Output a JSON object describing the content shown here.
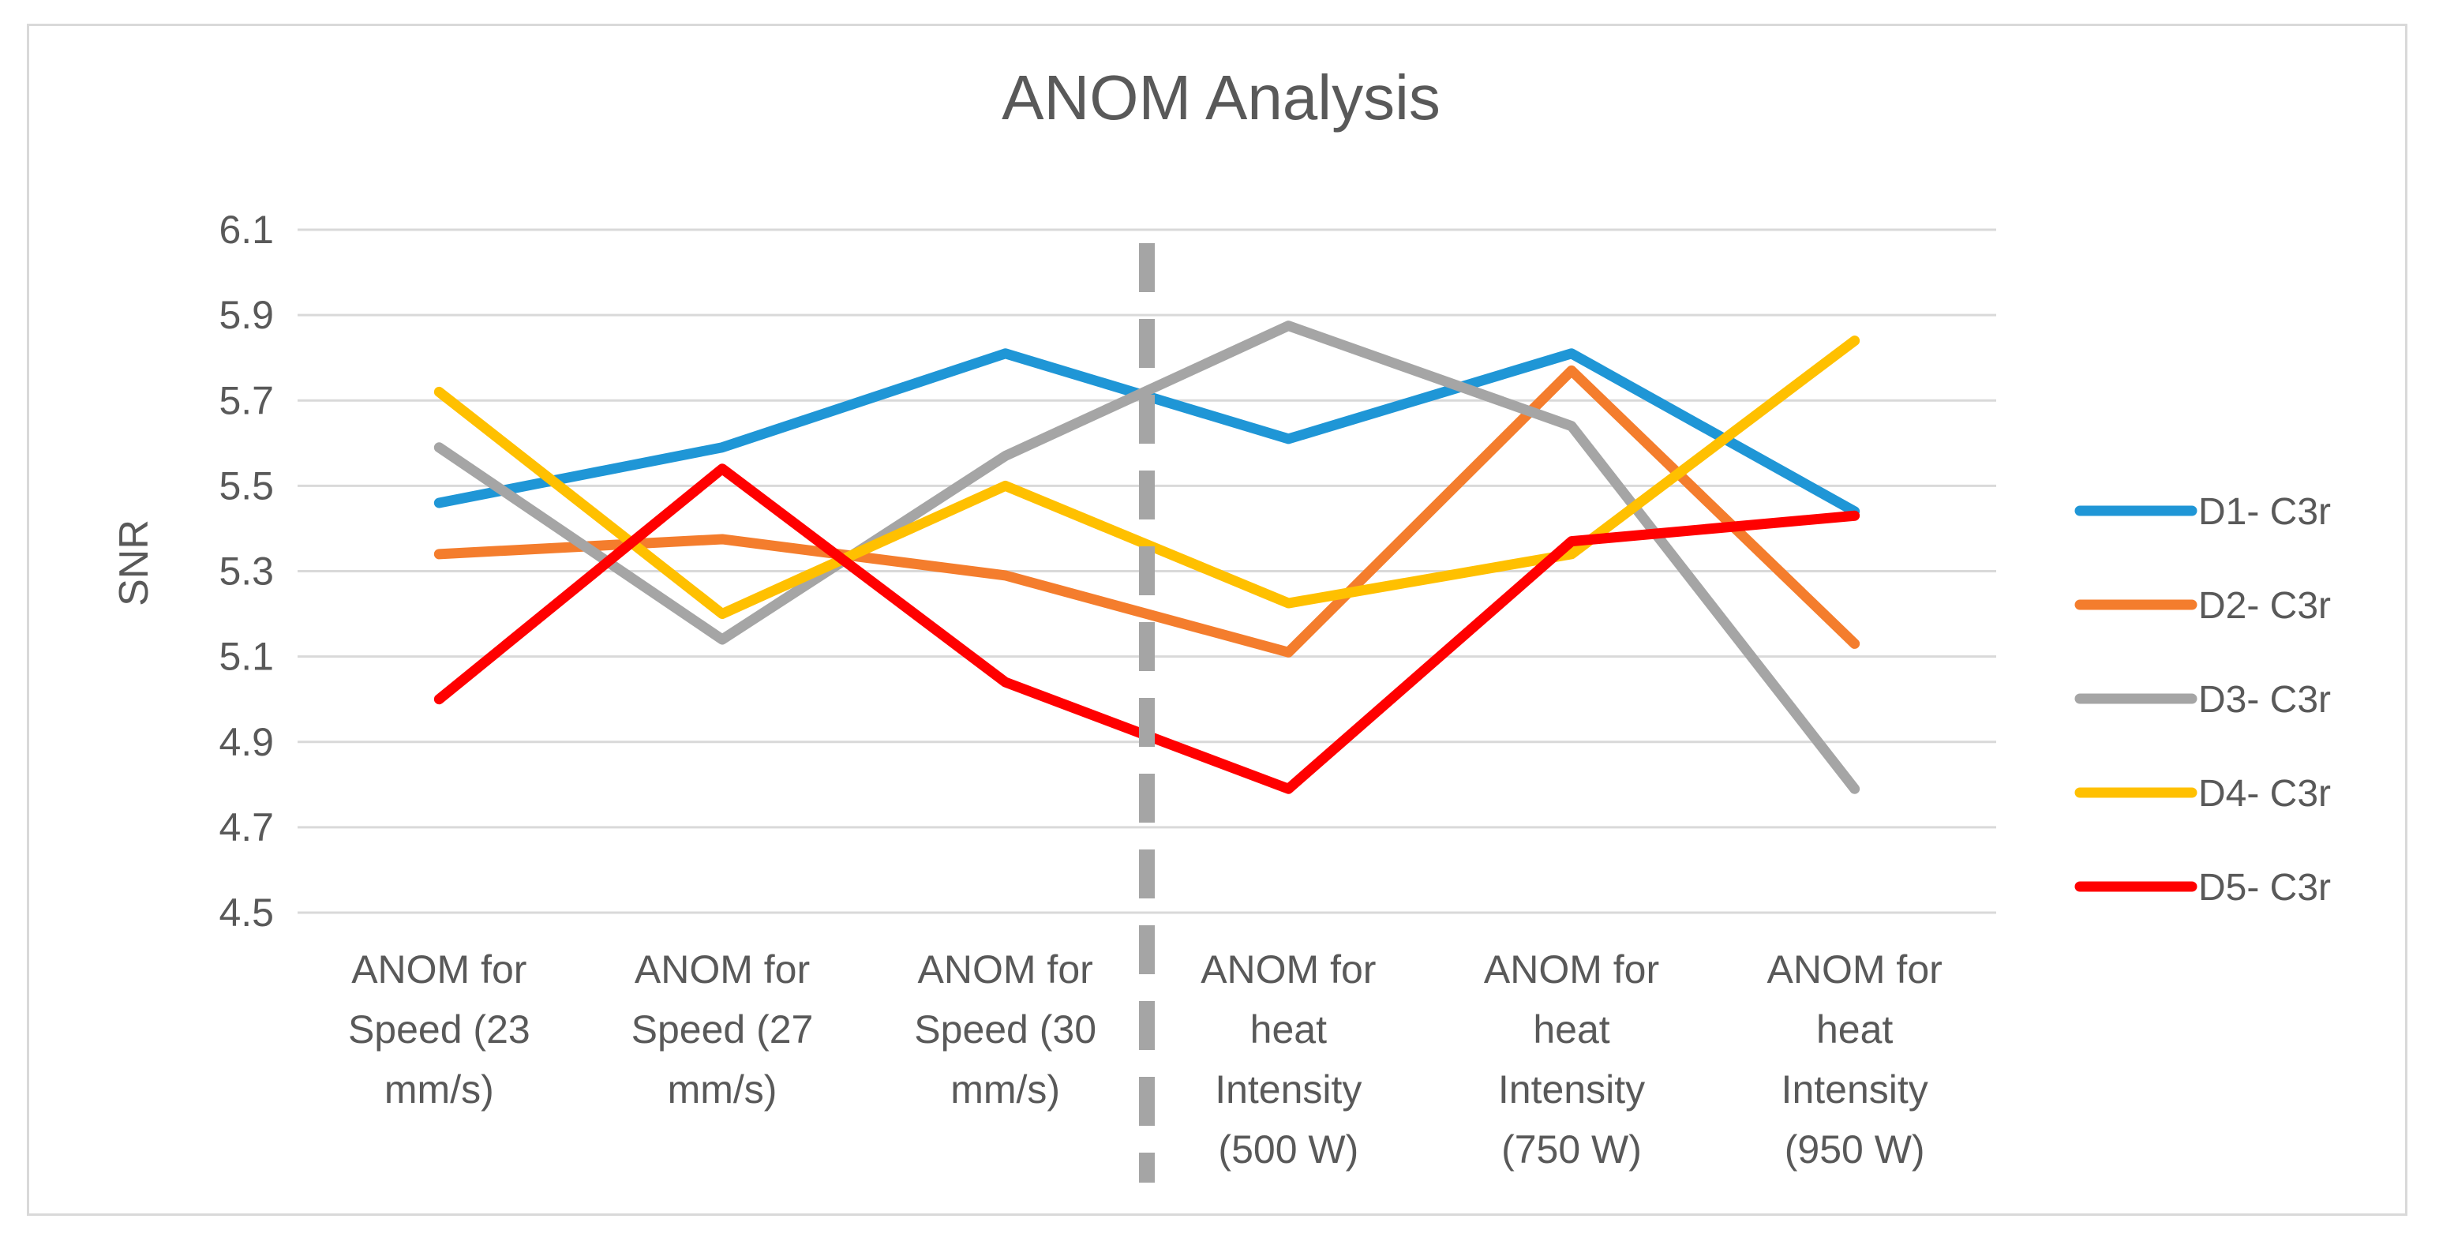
{
  "chart_data": {
    "type": "line",
    "title": "ANOM Analysis",
    "xlabel": "",
    "ylabel": "SNR",
    "ylim": [
      4.5,
      6.1
    ],
    "yticks": [
      "6.1",
      "5.9",
      "5.7",
      "5.5",
      "5.3",
      "5.1",
      "4.9",
      "4.7",
      "4.5"
    ],
    "grid": true,
    "legend_position": "right",
    "categories": [
      [
        "ANOM for",
        "Speed (23",
        "mm/s)"
      ],
      [
        "ANOM for",
        "Speed (27",
        "mm/s)"
      ],
      [
        "ANOM for",
        "Speed (30",
        "mm/s)"
      ],
      [
        "ANOM for",
        "heat",
        "Intensity",
        "(500 W)"
      ],
      [
        "ANOM for",
        "heat",
        "Intensity",
        "(750 W)"
      ],
      [
        "ANOM for",
        "heat",
        "Intensity",
        "(950 W)"
      ]
    ],
    "divider_after_category_index": 2,
    "series": [
      {
        "name": "D1- C3r",
        "color": "#1f96d6",
        "values": [
          5.46,
          5.59,
          5.81,
          5.61,
          5.81,
          5.44
        ]
      },
      {
        "name": "D2- C3r",
        "color": "#f47d2d",
        "values": [
          5.34,
          5.375,
          5.29,
          5.11,
          5.77,
          5.13
        ]
      },
      {
        "name": "D3- C3r",
        "color": "#a5a5a5",
        "values": [
          5.59,
          5.14,
          5.57,
          5.875,
          5.64,
          4.79
        ]
      },
      {
        "name": "D4- C3r",
        "color": "#ffc000",
        "values": [
          5.72,
          5.2,
          5.5,
          5.225,
          5.34,
          5.84
        ]
      },
      {
        "name": "D5- C3r",
        "color": "#ff0000",
        "values": [
          5.0,
          5.54,
          5.04,
          4.79,
          5.37,
          5.43
        ]
      }
    ],
    "divider_color": "#a5a5a5"
  }
}
